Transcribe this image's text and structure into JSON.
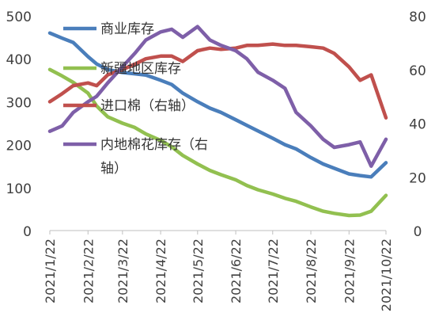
{
  "chart_data": {
    "type": "line",
    "x": [
      "2021/1/22",
      "2021/2/22",
      "2021/3/22",
      "2021/4/22",
      "2021/5/22",
      "2021/6/22",
      "2021/7/22",
      "2021/8/22",
      "2021/9/22",
      "2021/10/22"
    ],
    "y_left": {
      "ticks": [
        "0",
        "100",
        "200",
        "300",
        "400",
        "500"
      ],
      "min": 0,
      "max": 500
    },
    "y_right": {
      "ticks": [
        "0",
        "20",
        "40",
        "60",
        "80"
      ],
      "min": 0,
      "max": 80
    },
    "legend_placement": "inside-center",
    "grid": false,
    "series": [
      {
        "name": "商业库存",
        "axis": "left",
        "color": "#4a7ebb",
        "points": [
          [
            "2021/1/22",
            460
          ],
          [
            "2021/2/1",
            448
          ],
          [
            "2021/2/10",
            438
          ],
          [
            "2021/2/22",
            405
          ],
          [
            "2021/3/1",
            388
          ],
          [
            "2021/3/10",
            375
          ],
          [
            "2021/3/22",
            368
          ],
          [
            "2021/4/1",
            365
          ],
          [
            "2021/4/10",
            362
          ],
          [
            "2021/4/22",
            350
          ],
          [
            "2021/5/1",
            340
          ],
          [
            "2021/5/10",
            320
          ],
          [
            "2021/5/22",
            300
          ],
          [
            "2021/6/1",
            285
          ],
          [
            "2021/6/10",
            275
          ],
          [
            "2021/6/22",
            258
          ],
          [
            "2021/7/1",
            245
          ],
          [
            "2021/7/10",
            232
          ],
          [
            "2021/7/22",
            215
          ],
          [
            "2021/8/1",
            200
          ],
          [
            "2021/8/10",
            190
          ],
          [
            "2021/8/22",
            170
          ],
          [
            "2021/9/1",
            155
          ],
          [
            "2021/9/10",
            145
          ],
          [
            "2021/9/22",
            132
          ],
          [
            "2021/10/1",
            128
          ],
          [
            "2021/10/10",
            125
          ],
          [
            "2021/10/22",
            158
          ]
        ]
      },
      {
        "name": "新疆地区库存",
        "axis": "left",
        "color": "#92c050",
        "points": [
          [
            "2021/1/22",
            375
          ],
          [
            "2021/2/1",
            360
          ],
          [
            "2021/2/10",
            345
          ],
          [
            "2021/2/22",
            320
          ],
          [
            "2021/3/1",
            290
          ],
          [
            "2021/3/10",
            265
          ],
          [
            "2021/3/22",
            250
          ],
          [
            "2021/4/1",
            240
          ],
          [
            "2021/4/10",
            225
          ],
          [
            "2021/4/22",
            210
          ],
          [
            "2021/5/1",
            195
          ],
          [
            "2021/5/10",
            175
          ],
          [
            "2021/5/22",
            155
          ],
          [
            "2021/6/1",
            140
          ],
          [
            "2021/6/10",
            130
          ],
          [
            "2021/6/22",
            118
          ],
          [
            "2021/7/1",
            105
          ],
          [
            "2021/7/10",
            95
          ],
          [
            "2021/7/22",
            85
          ],
          [
            "2021/8/1",
            75
          ],
          [
            "2021/8/10",
            68
          ],
          [
            "2021/8/22",
            55
          ],
          [
            "2021/9/1",
            45
          ],
          [
            "2021/9/10",
            40
          ],
          [
            "2021/9/22",
            35
          ],
          [
            "2021/10/1",
            36
          ],
          [
            "2021/10/10",
            45
          ],
          [
            "2021/10/22",
            82
          ]
        ]
      },
      {
        "name": "进口棉（右轴）",
        "axis": "right",
        "color": "#c0504d",
        "points": [
          [
            "2021/1/22",
            48
          ],
          [
            "2021/2/1",
            51
          ],
          [
            "2021/2/10",
            54
          ],
          [
            "2021/2/22",
            55
          ],
          [
            "2021/3/1",
            54
          ],
          [
            "2021/3/10",
            58
          ],
          [
            "2021/3/22",
            60
          ],
          [
            "2021/4/1",
            62
          ],
          [
            "2021/4/10",
            64
          ],
          [
            "2021/4/22",
            65
          ],
          [
            "2021/5/1",
            65
          ],
          [
            "2021/5/10",
            63
          ],
          [
            "2021/5/22",
            67
          ],
          [
            "2021/6/1",
            68
          ],
          [
            "2021/6/10",
            67.5
          ],
          [
            "2021/6/22",
            68
          ],
          [
            "2021/7/1",
            69
          ],
          [
            "2021/7/10",
            69
          ],
          [
            "2021/7/22",
            69.5
          ],
          [
            "2021/8/1",
            69
          ],
          [
            "2021/8/10",
            69
          ],
          [
            "2021/8/22",
            68.5
          ],
          [
            "2021/9/1",
            68
          ],
          [
            "2021/9/10",
            66
          ],
          [
            "2021/9/22",
            61
          ],
          [
            "2021/10/1",
            56
          ],
          [
            "2021/10/10",
            58
          ],
          [
            "2021/10/22",
            42
          ]
        ]
      },
      {
        "name": "内地棉花库存（右轴）",
        "axis": "right",
        "color": "#7e5fa8",
        "points": [
          [
            "2021/1/22",
            37
          ],
          [
            "2021/2/1",
            39
          ],
          [
            "2021/2/10",
            44
          ],
          [
            "2021/2/22",
            48
          ],
          [
            "2021/3/1",
            50
          ],
          [
            "2021/3/10",
            55
          ],
          [
            "2021/3/22",
            61
          ],
          [
            "2021/4/1",
            66
          ],
          [
            "2021/4/10",
            71
          ],
          [
            "2021/4/22",
            74
          ],
          [
            "2021/5/1",
            75
          ],
          [
            "2021/5/10",
            72
          ],
          [
            "2021/5/22",
            76
          ],
          [
            "2021/6/1",
            71
          ],
          [
            "2021/6/10",
            69
          ],
          [
            "2021/6/22",
            67
          ],
          [
            "2021/7/1",
            64
          ],
          [
            "2021/7/10",
            59
          ],
          [
            "2021/7/22",
            56
          ],
          [
            "2021/8/1",
            53
          ],
          [
            "2021/8/10",
            44
          ],
          [
            "2021/8/22",
            39
          ],
          [
            "2021/9/1",
            34
          ],
          [
            "2021/9/10",
            31
          ],
          [
            "2021/9/22",
            32
          ],
          [
            "2021/10/1",
            33
          ],
          [
            "2021/10/10",
            24
          ],
          [
            "2021/10/22",
            34
          ]
        ]
      }
    ]
  }
}
